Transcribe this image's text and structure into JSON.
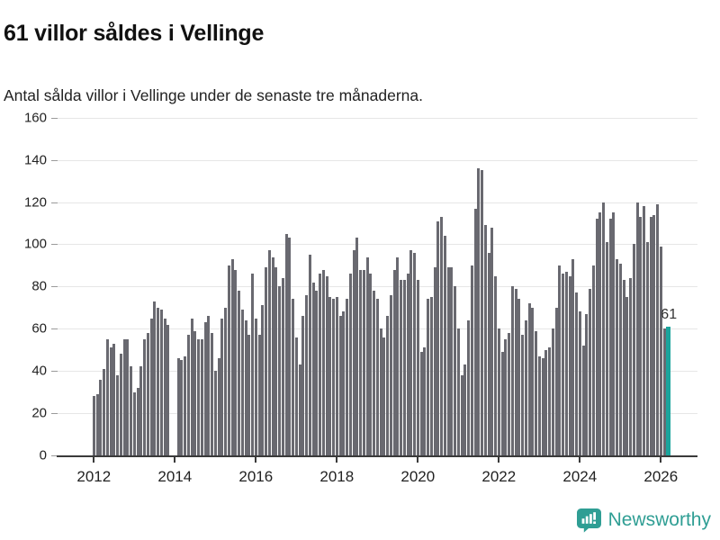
{
  "header": {
    "title": "61 villor såldes i Vellinge",
    "subtitle": "Antal sålda villor i Vellinge under de senaste tre månaderna."
  },
  "annotation": {
    "last_value_label": "61"
  },
  "branding": {
    "name": "Newsworthy",
    "icon": "newsworthy-speech-bubble-chart-icon"
  },
  "colors": {
    "bar": "#696970",
    "accent": "#1ba59d",
    "grid": "#e6e6e6",
    "axis": "#3a3a3a",
    "tick": "#9a9a9a",
    "text": "#222222",
    "title": "#111111",
    "brand": "#2f9e94"
  },
  "chart_data": {
    "type": "bar",
    "title": "61 villor såldes i Vellinge",
    "subtitle": "Antal sålda villor i Vellinge under de senaste tre månaderna.",
    "x_start_month": "2012-01",
    "x_end_month": "2026-03",
    "x_tick_labels": [
      "2012",
      "2014",
      "2016",
      "2018",
      "2020",
      "2022",
      "2024",
      "2026"
    ],
    "y_ticks": [
      0,
      20,
      40,
      60,
      80,
      100,
      120,
      140,
      160
    ],
    "ylim": [
      0,
      160
    ],
    "grid": "horizontal",
    "highlight_last_bar": true,
    "last_bar_label": "61",
    "note": "null = month without bar (no data)",
    "series": [
      {
        "name": "Antal sålda villor (rullande tre månader)",
        "values": [
          28,
          29,
          36,
          41,
          55,
          51,
          53,
          38,
          48,
          55,
          55,
          42,
          30,
          32,
          42,
          55,
          58,
          65,
          73,
          70,
          69,
          65,
          62,
          null,
          null,
          46,
          45,
          47,
          57,
          65,
          59,
          55,
          55,
          63,
          66,
          58,
          40,
          46,
          65,
          70,
          90,
          93,
          88,
          78,
          69,
          64,
          57,
          86,
          65,
          57,
          71,
          89,
          97,
          94,
          89,
          80,
          84,
          105,
          103,
          74,
          56,
          43,
          66,
          76,
          95,
          82,
          78,
          86,
          88,
          85,
          75,
          74,
          75,
          66,
          68,
          74,
          86,
          97,
          103,
          88,
          88,
          94,
          86,
          78,
          74,
          60,
          56,
          66,
          76,
          88,
          94,
          83,
          83,
          86,
          97,
          96,
          83,
          49,
          51,
          74,
          75,
          89,
          111,
          113,
          104,
          89,
          89,
          80,
          60,
          38,
          43,
          64,
          90,
          117,
          136,
          135,
          109,
          96,
          108,
          85,
          60,
          49,
          55,
          58,
          80,
          79,
          74,
          57,
          64,
          72,
          70,
          59,
          47,
          46,
          50,
          51,
          60,
          70,
          90,
          86,
          87,
          85,
          93,
          77,
          68,
          52,
          67,
          79,
          90,
          112,
          115,
          120,
          101,
          112,
          115,
          93,
          91,
          83,
          75,
          84,
          100,
          120,
          113,
          118,
          101,
          113,
          114,
          119,
          99,
          60,
          61
        ]
      }
    ]
  }
}
